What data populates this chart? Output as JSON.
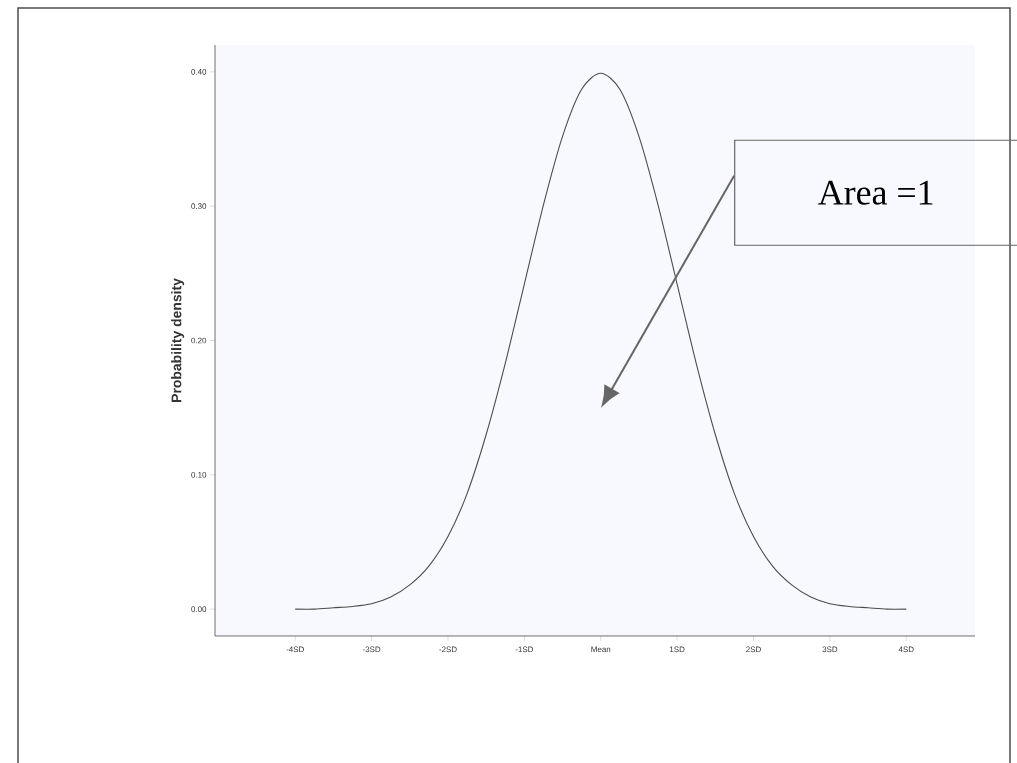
{
  "chart_data": {
    "type": "line",
    "ylabel": "Probability density",
    "x": [
      -4,
      -3.75,
      -3.5,
      -3.25,
      -3,
      -2.75,
      -2.5,
      -2.25,
      -2,
      -1.75,
      -1.5,
      -1.25,
      -1,
      -0.75,
      -0.5,
      -0.25,
      0,
      0.25,
      0.5,
      0.75,
      1,
      1.25,
      1.5,
      1.75,
      2,
      2.25,
      2.5,
      2.75,
      3,
      3.25,
      3.5,
      3.75,
      4
    ],
    "series": [
      {
        "color": "#4d4d4d",
        "values": [
          0.0,
          0.0,
          0.001,
          0.002,
          0.004,
          0.009,
          0.018,
          0.032,
          0.054,
          0.086,
          0.13,
          0.183,
          0.242,
          0.301,
          0.352,
          0.387,
          0.399,
          0.387,
          0.352,
          0.301,
          0.242,
          0.183,
          0.13,
          0.086,
          0.054,
          0.032,
          0.018,
          0.009,
          0.004,
          0.002,
          0.001,
          0.0,
          0.0
        ]
      }
    ],
    "xlim": [
      -5.05,
      4.9
    ],
    "ylim": [
      -0.02,
      0.42
    ],
    "xticks": [
      {
        "value": -4,
        "label": "-4SD"
      },
      {
        "value": -3,
        "label": "-3SD"
      },
      {
        "value": -2,
        "label": "-2SD"
      },
      {
        "value": -1,
        "label": "-1SD"
      },
      {
        "value": 0,
        "label": "Mean"
      },
      {
        "value": 1,
        "label": "1SD"
      },
      {
        "value": 2,
        "label": "2SD"
      },
      {
        "value": 3,
        "label": "3SD"
      },
      {
        "value": 4,
        "label": "4SD"
      }
    ],
    "yticks": [
      {
        "value": 0,
        "label": "0.00"
      },
      {
        "value": 0.1,
        "label": "0.10"
      },
      {
        "value": 0.2,
        "label": "0.20"
      },
      {
        "value": 0.3,
        "label": "0.30"
      },
      {
        "value": 0.4,
        "label": "0.40"
      }
    ],
    "annotations": [
      "Area =1"
    ]
  }
}
